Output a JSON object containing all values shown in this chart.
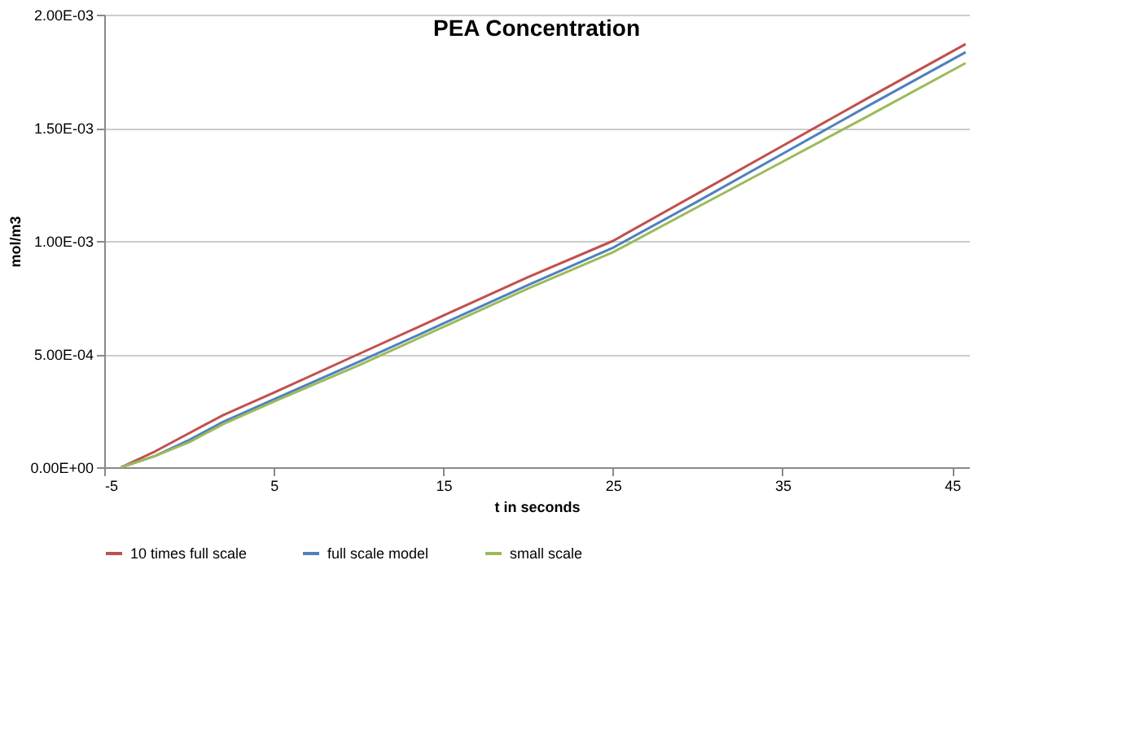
{
  "chart_data": {
    "type": "line",
    "title": "PEA Concentration",
    "xlabel": "t in seconds",
    "ylabel": "mol/m3",
    "x": [
      -4,
      -2,
      0,
      2,
      5,
      10,
      15,
      20,
      25,
      30,
      35,
      40,
      45.8
    ],
    "series": [
      {
        "name": "10 times full scale",
        "color": "#c0504d",
        "values": [
          0,
          7e-05,
          0.00015,
          0.00023,
          0.00033,
          0.0005,
          0.00067,
          0.00084,
          0.001,
          0.00121,
          0.00142,
          0.00163,
          0.00187
        ]
      },
      {
        "name": "full scale model",
        "color": "#4f81bd",
        "values": [
          0,
          5e-05,
          0.00012,
          0.0002,
          0.0003,
          0.000465,
          0.000635,
          0.000805,
          0.00097,
          0.001175,
          0.001385,
          0.001595,
          0.001834
        ]
      },
      {
        "name": "small scale",
        "color": "#9bbb59",
        "values": [
          0,
          5e-05,
          0.00011,
          0.00019,
          0.00029,
          0.00045,
          0.00062,
          0.00079,
          0.00095,
          0.00115,
          0.00135,
          0.00155,
          0.001786
        ]
      }
    ],
    "xlim": [
      -5,
      46
    ],
    "xticks": [
      -5,
      5,
      15,
      25,
      35,
      45
    ],
    "ylim": [
      0,
      0.002
    ],
    "yticks": [
      {
        "value": 0,
        "label": "0.00E+00"
      },
      {
        "value": 0.0005,
        "label": "5.00E-04"
      },
      {
        "value": 0.001,
        "label": "1.00E-03"
      },
      {
        "value": 0.0015,
        "label": "1.50E-03"
      },
      {
        "value": 0.002,
        "label": "2.00E-03"
      }
    ],
    "grid": "y",
    "legend": "bottom",
    "marker": "none",
    "line_style": "solid"
  }
}
